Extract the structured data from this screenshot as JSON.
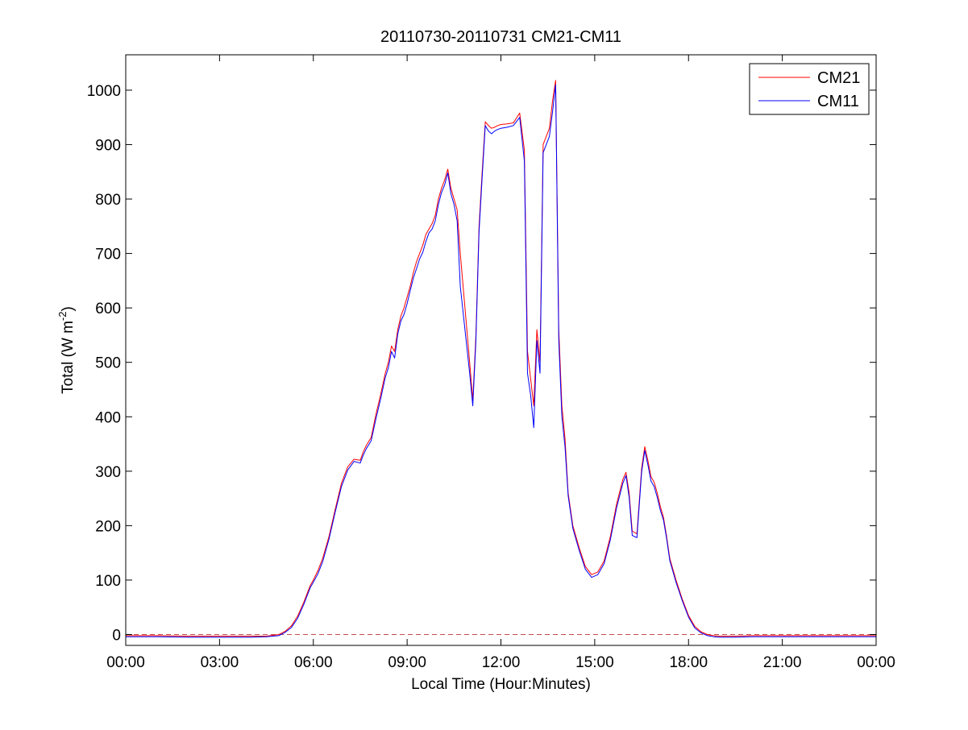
{
  "chart_data": {
    "type": "line",
    "title": "20110730-20110731 CM21-CM11",
    "xlabel": "Local Time (Hour:Minutes)",
    "ylabel": "Total (W m",
    "ylabel_sup": "-2",
    "ylabel_tail": ")",
    "x_unit": "hours",
    "xlim": [
      0,
      24
    ],
    "ylim": [
      -20,
      1065
    ],
    "x_ticks": [
      0,
      3,
      6,
      9,
      12,
      15,
      18,
      21,
      24
    ],
    "x_tick_labels": [
      "00:00",
      "03:00",
      "06:00",
      "09:00",
      "12:00",
      "15:00",
      "18:00",
      "21:00",
      "00:00"
    ],
    "y_ticks": [
      0,
      100,
      200,
      300,
      400,
      500,
      600,
      700,
      800,
      900,
      1000
    ],
    "y_tick_labels": [
      "0",
      "100",
      "200",
      "300",
      "400",
      "500",
      "600",
      "700",
      "800",
      "900",
      "1000"
    ],
    "reference_line": {
      "y": 0,
      "color": "#c0504d",
      "style": "dashed"
    },
    "legend": {
      "position": "top-right"
    },
    "series": [
      {
        "name": "CM21",
        "color": "#ff0000",
        "x": [
          0,
          1,
          2,
          3,
          4,
          4.5,
          4.9,
          5.1,
          5.3,
          5.5,
          5.7,
          5.9,
          6.0,
          6.15,
          6.3,
          6.5,
          6.7,
          6.9,
          7.1,
          7.3,
          7.5,
          7.6,
          7.7,
          7.85,
          8.0,
          8.15,
          8.3,
          8.4,
          8.5,
          8.6,
          8.7,
          8.8,
          8.9,
          9.0,
          9.1,
          9.2,
          9.3,
          9.4,
          9.5,
          9.6,
          9.7,
          9.8,
          9.9,
          10.0,
          10.1,
          10.2,
          10.3,
          10.4,
          10.5,
          10.6,
          10.7,
          10.85,
          11.0,
          11.1,
          11.2,
          11.3,
          11.4,
          11.5,
          11.6,
          11.7,
          11.8,
          11.9,
          12.0,
          12.2,
          12.4,
          12.6,
          12.75,
          12.85,
          12.95,
          13.05,
          13.15,
          13.25,
          13.35,
          13.45,
          13.55,
          13.65,
          13.75,
          13.85,
          13.95,
          14.05,
          14.15,
          14.3,
          14.5,
          14.7,
          14.9,
          15.1,
          15.3,
          15.5,
          15.7,
          15.9,
          16.0,
          16.1,
          16.2,
          16.35,
          16.5,
          16.6,
          16.7,
          16.8,
          16.9,
          17.0,
          17.1,
          17.2,
          17.3,
          17.4,
          17.6,
          17.8,
          18.0,
          18.2,
          18.4,
          18.6,
          18.8,
          19.0,
          19.5,
          20,
          21,
          22,
          23,
          24
        ],
        "values": [
          -2,
          -2,
          -3,
          -3,
          -3,
          -3,
          0,
          6,
          16,
          34,
          60,
          90,
          100,
          118,
          140,
          180,
          230,
          278,
          308,
          322,
          320,
          336,
          348,
          362,
          404,
          440,
          480,
          500,
          530,
          520,
          560,
          585,
          600,
          620,
          640,
          665,
          685,
          700,
          715,
          735,
          745,
          755,
          770,
          800,
          820,
          835,
          855,
          820,
          800,
          780,
          700,
          600,
          500,
          430,
          550,
          750,
          850,
          942,
          935,
          930,
          932,
          935,
          937,
          938,
          940,
          958,
          890,
          520,
          470,
          420,
          560,
          500,
          900,
          915,
          930,
          980,
          1018,
          560,
          420,
          360,
          260,
          200,
          160,
          125,
          110,
          115,
          135,
          180,
          240,
          285,
          298,
          260,
          190,
          185,
          305,
          345,
          320,
          290,
          280,
          260,
          235,
          215,
          180,
          140,
          100,
          65,
          35,
          15,
          5,
          0,
          -2,
          -3,
          -3,
          -2,
          -2,
          -2,
          -2,
          -2
        ]
      },
      {
        "name": "CM11",
        "color": "#0000ff",
        "x": [
          0,
          1,
          2,
          3,
          4,
          4.5,
          4.9,
          5.1,
          5.3,
          5.5,
          5.7,
          5.9,
          6.0,
          6.15,
          6.3,
          6.5,
          6.7,
          6.9,
          7.1,
          7.3,
          7.5,
          7.6,
          7.7,
          7.85,
          8.0,
          8.15,
          8.3,
          8.4,
          8.5,
          8.6,
          8.7,
          8.8,
          8.9,
          9.0,
          9.1,
          9.2,
          9.3,
          9.4,
          9.5,
          9.6,
          9.7,
          9.8,
          9.9,
          10.0,
          10.1,
          10.2,
          10.3,
          10.4,
          10.5,
          10.6,
          10.7,
          10.85,
          11.0,
          11.1,
          11.2,
          11.3,
          11.4,
          11.5,
          11.6,
          11.7,
          11.8,
          11.9,
          12.0,
          12.2,
          12.4,
          12.6,
          12.75,
          12.85,
          12.95,
          13.05,
          13.15,
          13.25,
          13.35,
          13.45,
          13.55,
          13.65,
          13.75,
          13.85,
          13.95,
          14.05,
          14.15,
          14.3,
          14.5,
          14.7,
          14.9,
          15.1,
          15.3,
          15.5,
          15.7,
          15.9,
          16.0,
          16.1,
          16.2,
          16.35,
          16.5,
          16.6,
          16.7,
          16.8,
          16.9,
          17.0,
          17.1,
          17.2,
          17.3,
          17.4,
          17.6,
          17.8,
          18.0,
          18.2,
          18.4,
          18.6,
          18.8,
          19.0,
          19.5,
          20,
          21,
          22,
          23,
          24
        ],
        "values": [
          -4,
          -4,
          -5,
          -5,
          -5,
          -4,
          -2,
          4,
          13,
          30,
          56,
          86,
          96,
          112,
          134,
          175,
          225,
          272,
          302,
          318,
          315,
          330,
          342,
          356,
          396,
          432,
          472,
          490,
          520,
          508,
          552,
          576,
          588,
          608,
          632,
          655,
          672,
          690,
          702,
          722,
          738,
          745,
          760,
          790,
          812,
          826,
          848,
          810,
          790,
          760,
          640,
          560,
          480,
          420,
          540,
          740,
          840,
          935,
          925,
          920,
          925,
          928,
          930,
          932,
          935,
          950,
          870,
          480,
          440,
          380,
          540,
          480,
          885,
          900,
          915,
          960,
          1010,
          540,
          400,
          345,
          255,
          195,
          155,
          120,
          105,
          110,
          130,
          174,
          233,
          278,
          292,
          252,
          182,
          178,
          298,
          338,
          312,
          282,
          272,
          252,
          228,
          210,
          176,
          136,
          96,
          62,
          32,
          12,
          3,
          -2,
          -4,
          -5,
          -5,
          -4,
          -4,
          -4,
          -4,
          -4
        ]
      }
    ]
  }
}
